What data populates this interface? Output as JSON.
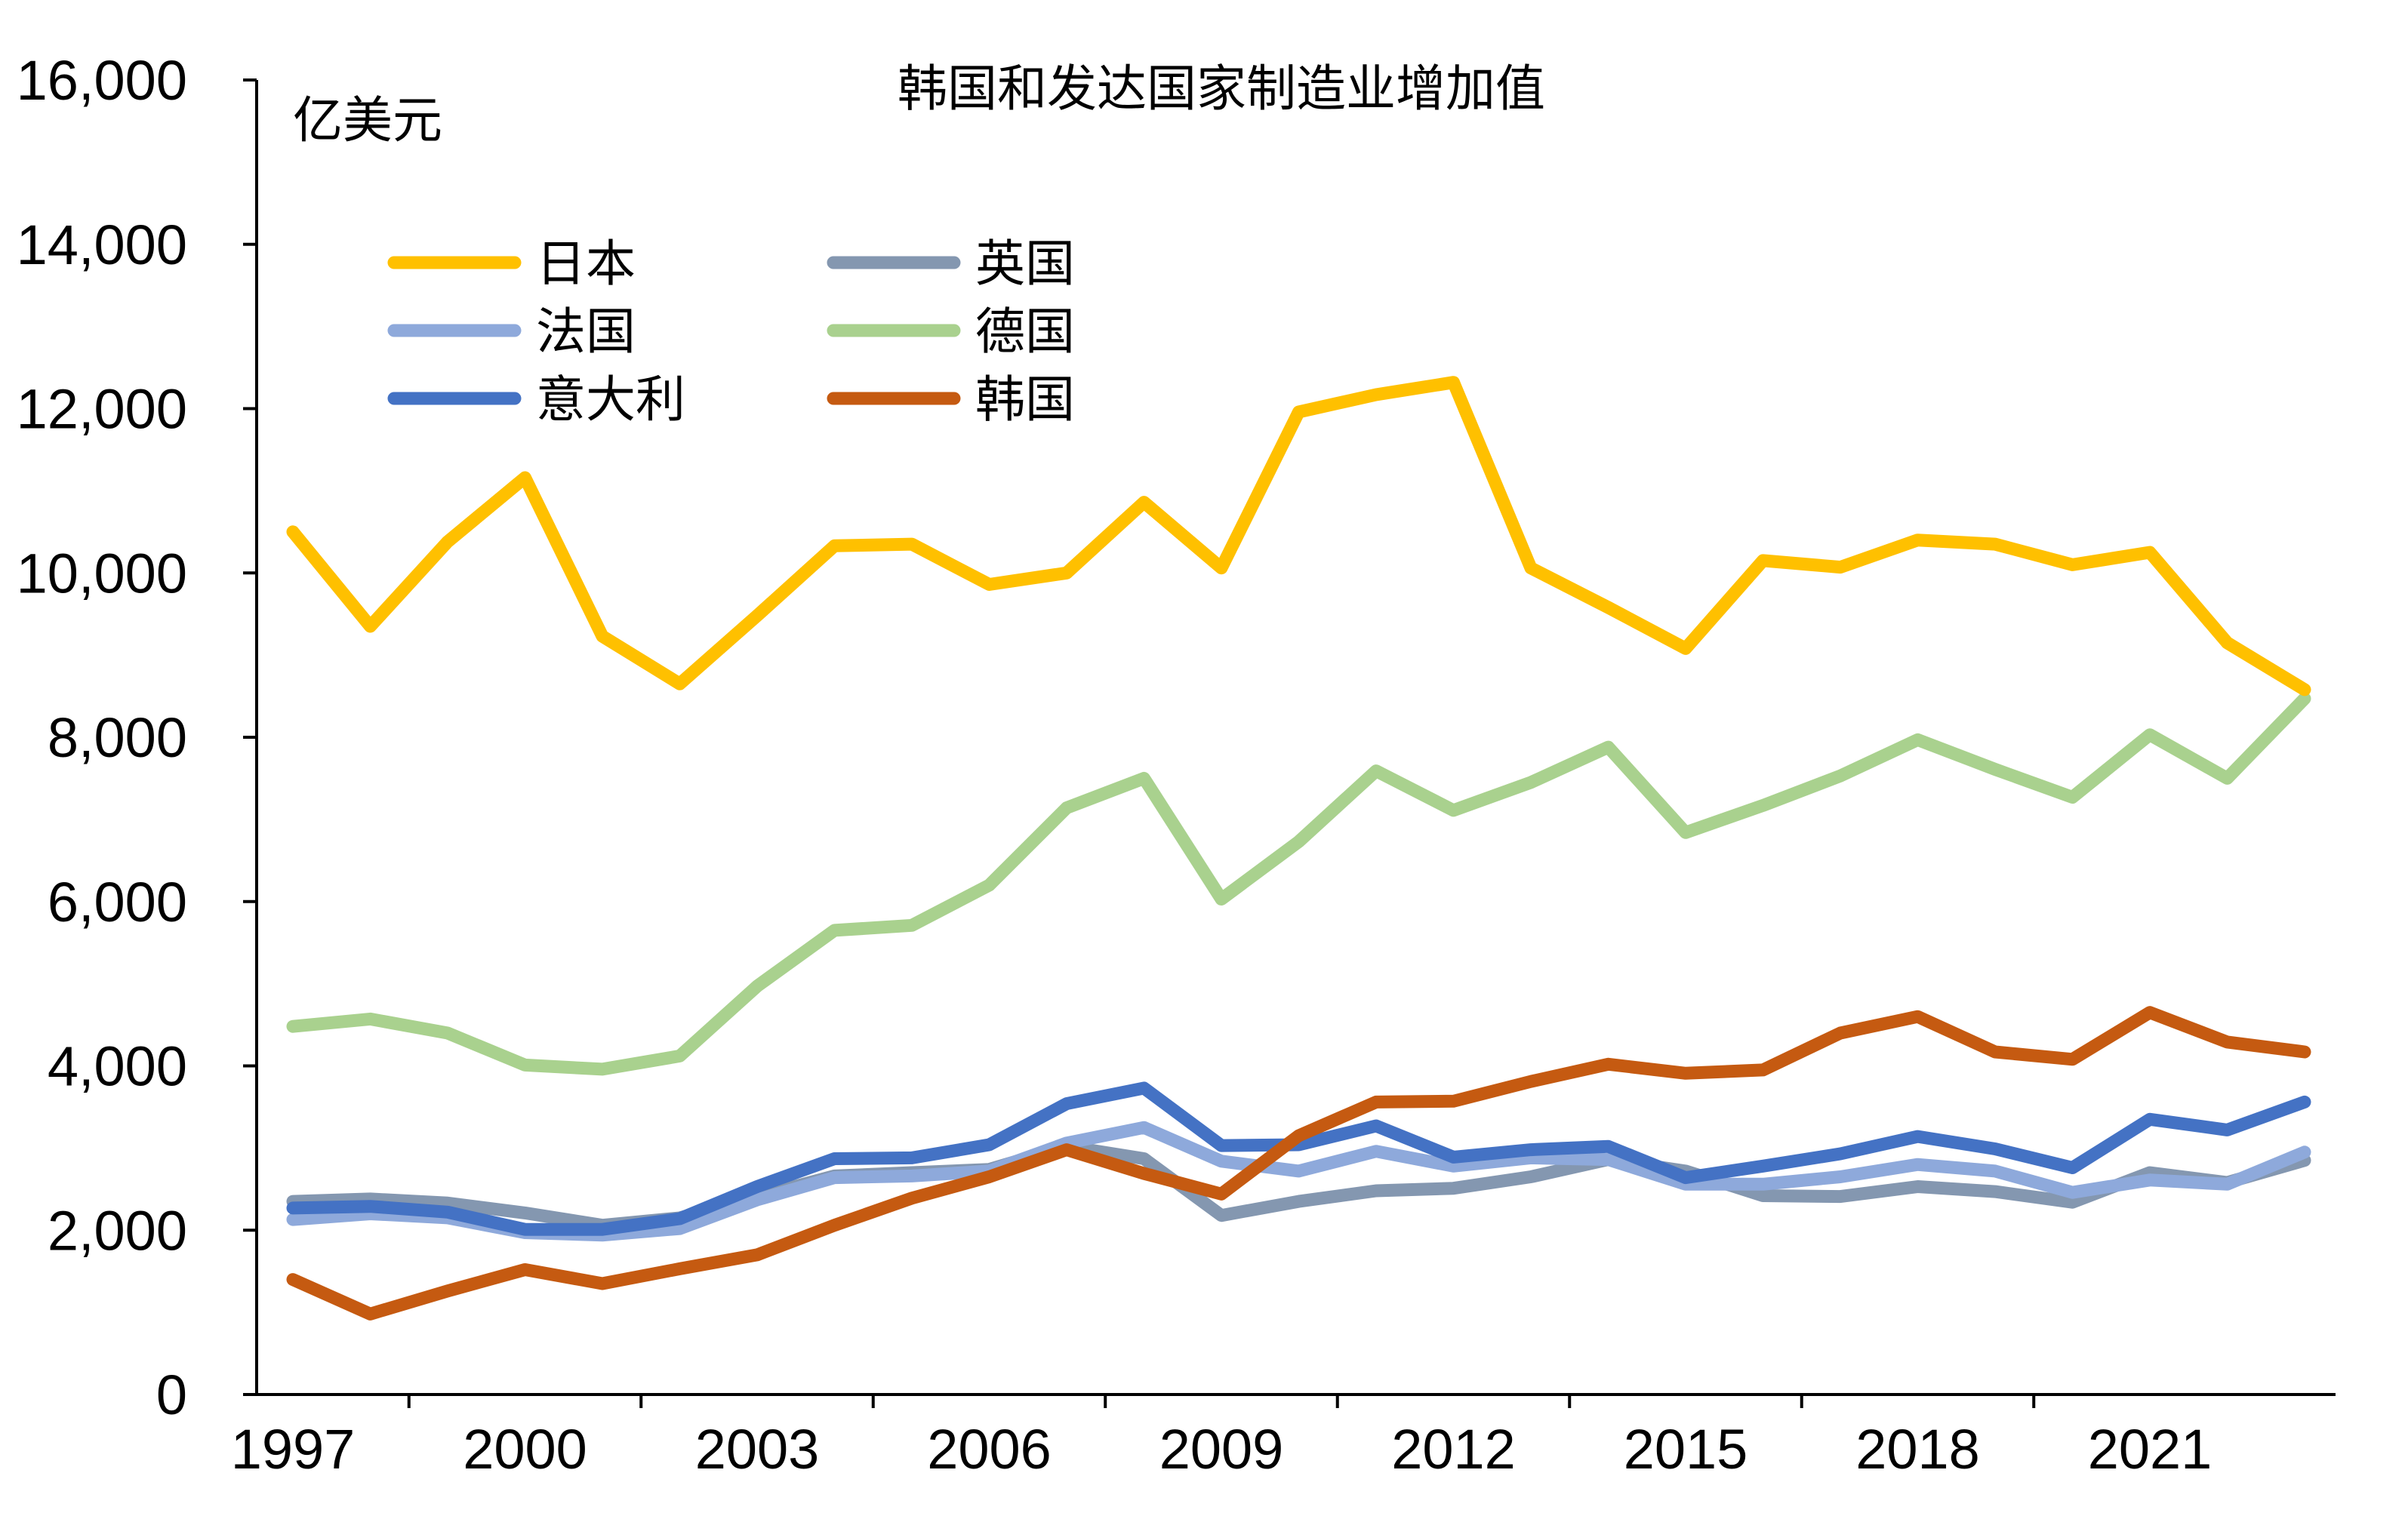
{
  "chart_data": {
    "type": "line",
    "title": "韩国和发达国家制造业增加值",
    "ylabel": "亿美元",
    "xlabel": "",
    "ylim": [
      0,
      16000
    ],
    "yticks": [
      0,
      2000,
      4000,
      6000,
      8000,
      10000,
      12000,
      14000,
      16000
    ],
    "ytick_labels": [
      "0",
      "2,000",
      "4,000",
      "6,000",
      "8,000",
      "10,000",
      "12,000",
      "14,000",
      "16,000"
    ],
    "xlim": [
      1997,
      2024
    ],
    "xticks": [
      1997,
      2000,
      2003,
      2006,
      2009,
      2012,
      2015,
      2018,
      2021
    ],
    "xtick_labels": [
      "1997",
      "2000",
      "2003",
      "2006",
      "2009",
      "2012",
      "2015",
      "2018",
      "2021"
    ],
    "x": [
      1997,
      1998,
      1999,
      2000,
      2001,
      2002,
      2003,
      2004,
      2005,
      2006,
      2007,
      2008,
      2009,
      2010,
      2011,
      2012,
      2013,
      2014,
      2015,
      2016,
      2017,
      2018,
      2019,
      2020,
      2021,
      2022,
      2023
    ],
    "legend_position": "top-left",
    "series": [
      {
        "name": "日本",
        "color": "#FFC000",
        "values": [
          10500,
          9350,
          10380,
          11160,
          9230,
          8650,
          9480,
          10330,
          10350,
          9860,
          10000,
          10860,
          10060,
          11960,
          12170,
          12320,
          10060,
          9580,
          9080,
          10150,
          10070,
          10400,
          10350,
          10100,
          10250,
          9150,
          8580
        ]
      },
      {
        "name": "英国",
        "color": "#8497B0",
        "values": [
          2350,
          2380,
          2330,
          2210,
          2060,
          2150,
          2410,
          2660,
          2700,
          2740,
          3020,
          2870,
          2180,
          2350,
          2480,
          2510,
          2650,
          2860,
          2720,
          2420,
          2410,
          2530,
          2470,
          2340,
          2700,
          2580,
          2850
        ]
      },
      {
        "name": "法国",
        "color": "#8EA9DB",
        "values": [
          2130,
          2200,
          2150,
          1970,
          1940,
          2020,
          2370,
          2640,
          2660,
          2720,
          3060,
          3250,
          2840,
          2720,
          2960,
          2780,
          2880,
          2860,
          2560,
          2560,
          2650,
          2800,
          2720,
          2460,
          2610,
          2560,
          2950
        ]
      },
      {
        "name": "德国",
        "color": "#A9D18E",
        "values": [
          4480,
          4570,
          4400,
          4010,
          3960,
          4120,
          4970,
          5650,
          5710,
          6200,
          7140,
          7500,
          6030,
          6730,
          7590,
          7110,
          7450,
          7880,
          6840,
          7170,
          7530,
          7970,
          7610,
          7270,
          8030,
          7500,
          8470
        ]
      },
      {
        "name": "意大利",
        "color": "#4472C4",
        "values": [
          2270,
          2290,
          2220,
          2010,
          2010,
          2140,
          2530,
          2870,
          2880,
          3040,
          3540,
          3730,
          3030,
          3040,
          3270,
          2890,
          2980,
          3020,
          2640,
          2780,
          2930,
          3140,
          2990,
          2760,
          3350,
          3220,
          3560
        ]
      },
      {
        "name": "韩国",
        "color": "#C55A11",
        "values": [
          1400,
          980,
          1260,
          1520,
          1350,
          1530,
          1700,
          2060,
          2390,
          2650,
          2980,
          2690,
          2440,
          3150,
          3560,
          3570,
          3810,
          4020,
          3910,
          3950,
          4400,
          4600,
          4170,
          4080,
          4650,
          4290,
          4170
        ]
      }
    ]
  }
}
